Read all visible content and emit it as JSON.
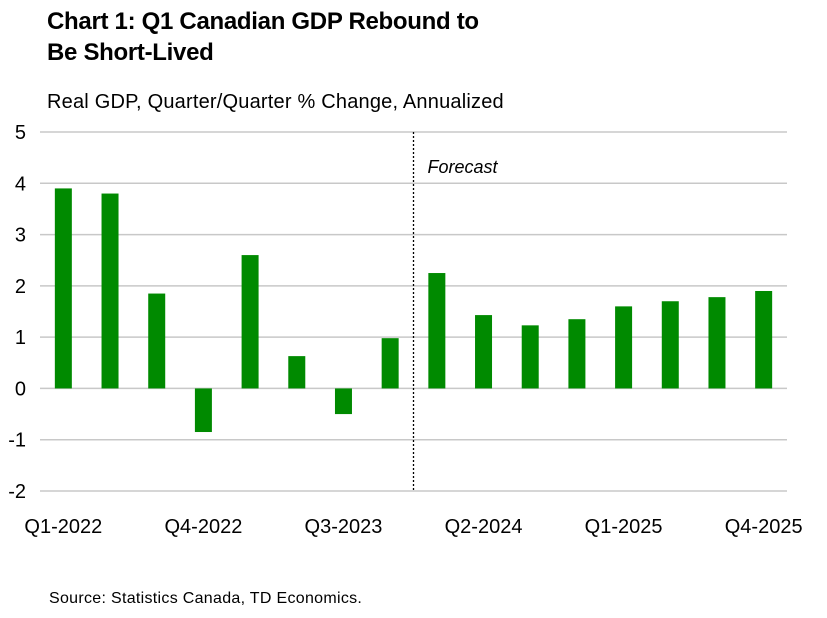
{
  "title_line1": "Chart 1: Q1 Canadian GDP Rebound to",
  "title_line2": "Be Short-Lived",
  "subtitle": "Real GDP, Quarter/Quarter % Change, Annualized",
  "source": "Source: Statistics Canada, TD Economics.",
  "colors": {
    "bar": "#008a00",
    "grid": "#c8c8c8"
  },
  "chart_data": {
    "type": "bar",
    "title": "Chart 1: Q1 Canadian GDP Rebound to Be Short-Lived",
    "ylabel": "Real GDP, Quarter/Quarter % Change, Annualized",
    "xlabel": "",
    "categories": [
      "Q1-2022",
      "Q2-2022",
      "Q3-2022",
      "Q4-2022",
      "Q1-2023",
      "Q2-2023",
      "Q3-2023",
      "Q4-2023",
      "Q1-2024",
      "Q2-2024",
      "Q3-2024",
      "Q4-2024",
      "Q1-2025",
      "Q2-2025",
      "Q3-2025",
      "Q4-2025"
    ],
    "values": [
      3.9,
      3.8,
      1.85,
      -0.85,
      2.6,
      0.63,
      -0.5,
      0.98,
      2.25,
      1.43,
      1.23,
      1.35,
      1.6,
      1.7,
      1.78,
      1.9
    ],
    "ylim": [
      -2,
      5
    ],
    "yticks": [
      5,
      4,
      3,
      2,
      1,
      0,
      -1,
      -2
    ],
    "xtick_labels": [
      "Q1-2022",
      "Q4-2022",
      "Q3-2023",
      "Q2-2024",
      "Q1-2025",
      "Q4-2025"
    ],
    "forecast_start_index": 8,
    "annotation": "Forecast",
    "grid": true
  }
}
